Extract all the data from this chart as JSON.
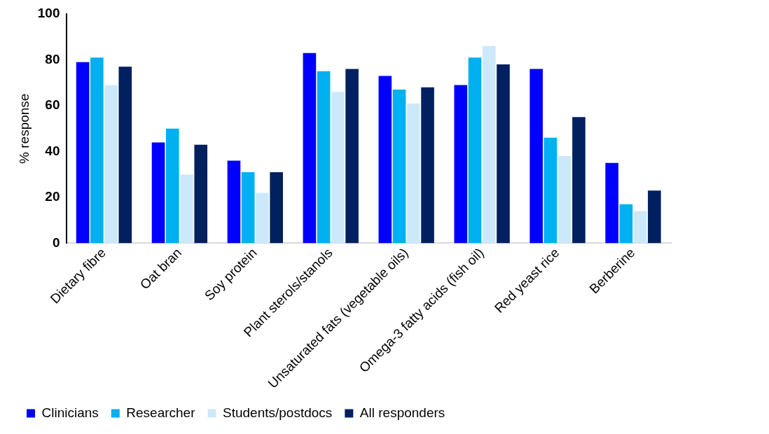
{
  "chart_data": {
    "type": "bar",
    "ylabel": "% response",
    "categories": [
      "Dietary fibre",
      "Oat bran",
      "Soy protein",
      "Plant sterols/stanols",
      "Unsaturated fats (vegetable oils)",
      "Omega-3 fatty acids (fish oil)",
      "Red yeast rice",
      "Berberine"
    ],
    "series": [
      {
        "name": "Clinicians",
        "color": "#0000ff",
        "values": [
          79,
          44,
          36,
          83,
          73,
          69,
          76,
          35
        ]
      },
      {
        "name": "Researcher",
        "color": "#00b0f0",
        "values": [
          81,
          50,
          31,
          75,
          67,
          81,
          46,
          17
        ]
      },
      {
        "name": "Students/postdocs",
        "color": "#cce9fb",
        "values": [
          69,
          30,
          22,
          66,
          61,
          86,
          38,
          14
        ]
      },
      {
        "name": "All responders",
        "color": "#002060",
        "values": [
          77,
          43,
          31,
          76,
          68,
          78,
          55,
          23
        ]
      }
    ],
    "ylim": [
      0,
      100
    ],
    "yticks": [
      0,
      20,
      40,
      60,
      80,
      100
    ],
    "grid": false,
    "legend": "bottom"
  }
}
